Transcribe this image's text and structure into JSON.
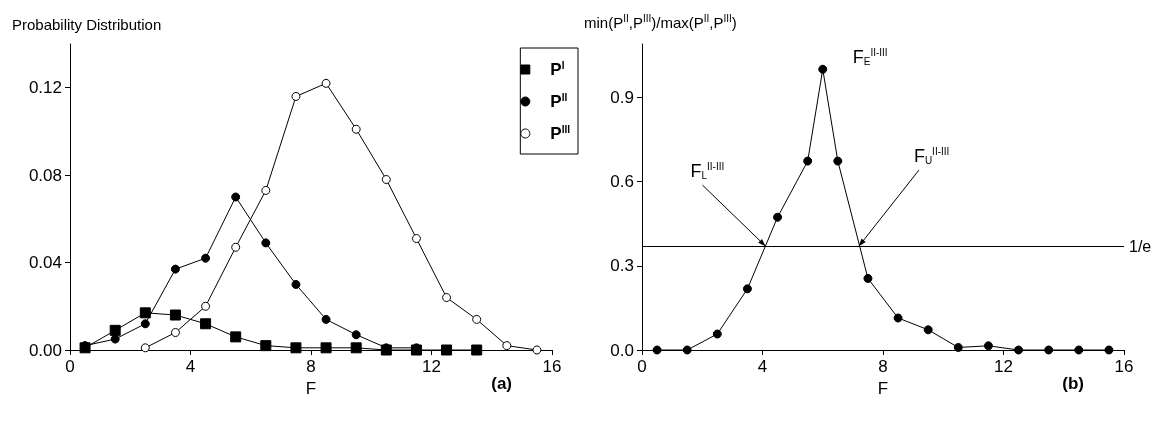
{
  "chart_data": [
    {
      "type": "line",
      "ylabel": "Probability Distribution",
      "xlabel": "F",
      "xlim": [
        0,
        16
      ],
      "xticks": [
        0,
        4,
        8,
        12,
        16
      ],
      "ylim": [
        0,
        0.14
      ],
      "yticks": [
        {
          "value": 0,
          "label": "0.00"
        },
        0.04,
        0.08,
        0.12
      ],
      "legend": "top right",
      "grid": false,
      "annotations": [
        "(a)"
      ],
      "series": [
        {
          "name": "P$^{I}$",
          "color": "#000000",
          "marker": "square",
          "x": [
            0.5,
            1.5,
            2.5,
            3.5,
            4.5,
            5.5,
            6.5,
            7.5,
            8.5,
            9.5,
            10.5,
            11.5,
            12.5,
            13.5
          ],
          "values": [
            0.001,
            0.009,
            0.017,
            0.016,
            0.012,
            0.006,
            0.002,
            0.001,
            0.001,
            0.001,
            0,
            0,
            0,
            0
          ]
        },
        {
          "name": "P$^{II}$",
          "color": "#000000",
          "marker": "circle",
          "x": [
            0.5,
            1.5,
            2.5,
            3.5,
            4.5,
            5.5,
            6.5,
            7.5,
            8.5,
            9.5,
            10.5,
            11.5
          ],
          "values": [
            0.002,
            0.005,
            0.012,
            0.037,
            0.042,
            0.07,
            0.049,
            0.03,
            0.014,
            0.007,
            0.001,
            0.001
          ]
        },
        {
          "name": "P$^{III}$",
          "color": "#ffffff",
          "marker": "circle",
          "x": [
            2.5,
            3.5,
            4.5,
            5.5,
            6.5,
            7.5,
            8.5,
            9.5,
            10.5,
            11.5,
            12.5,
            13.5,
            14.5,
            15.5
          ],
          "values": [
            0.001,
            0.008,
            0.02,
            0.047,
            0.073,
            0.116,
            0.122,
            0.101,
            0.078,
            0.051,
            0.024,
            0.014,
            0.002,
            0
          ]
        }
      ]
    },
    {
      "type": "line",
      "ylabel": "min(P$^{II}$,P$^{III}$)/max(P$^{II}$,P$^{III}$)",
      "xlabel": "F",
      "xlim": [
        0,
        16
      ],
      "xticks": [
        0,
        4,
        8,
        12,
        16
      ],
      "ylim": [
        0,
        1.09
      ],
      "yticks": [
        {
          "value": 0,
          "label": "0.0"
        },
        0.3,
        0.6,
        0.9
      ],
      "grid": false,
      "ref_lines": [
        {
          "axis": "y",
          "value": 0.37,
          "label": "1/e",
          "color": "#000000",
          "line_style": "solid"
        }
      ],
      "annotations": [
        {
          "text": "F$_{E}$$^{II-III}$",
          "x": 6,
          "y": 1.0
        },
        {
          "text": "F$_{L}$$^{II-III}$",
          "x": 4.1,
          "y": 0.37
        },
        {
          "text": "F$_{U}$$^{II-III}$",
          "x": 7.2,
          "y": 0.37
        },
        "(b)"
      ],
      "series": [
        {
          "color": "#000000",
          "marker": "circle",
          "x": [
            0.5,
            1.5,
            2.5,
            3.5,
            4.5,
            5.5,
            6,
            6.5,
            7.5,
            8.5,
            9.5,
            10.5,
            11.5,
            12.5,
            13.5,
            14.5,
            15.5
          ],
          "values": [
            0,
            0,
            0.057,
            0.218,
            0.473,
            0.673,
            1.0,
            0.673,
            0.255,
            0.114,
            0.072,
            0.009,
            0.015,
            0,
            0,
            0,
            0
          ]
        }
      ]
    }
  ]
}
